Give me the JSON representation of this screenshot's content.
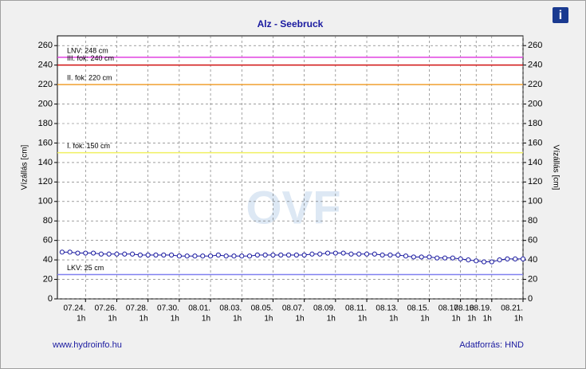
{
  "chart_data": {
    "type": "line",
    "title": "Alz - Seebruck",
    "y_label": "Vízállás [cm]",
    "y2_label": "Vízállás [cm]",
    "watermark": "OVF",
    "footer_left": "www.hydroinfo.hu",
    "footer_right": "Adatforrás: HND",
    "info_icon": "i",
    "xlim": [
      0.2,
      30
    ],
    "xticks": [
      {
        "value": 2,
        "label": "07.24."
      },
      {
        "value": 4,
        "label": "07.26."
      },
      {
        "value": 6,
        "label": "07.28."
      },
      {
        "value": 8,
        "label": "07.30."
      },
      {
        "value": 10,
        "label": "08.01."
      },
      {
        "value": 12,
        "label": "08.03."
      },
      {
        "value": 14,
        "label": "08.05."
      },
      {
        "value": 16,
        "label": "08.07."
      },
      {
        "value": 18,
        "label": "08.09."
      },
      {
        "value": 20,
        "label": "08.11."
      },
      {
        "value": 22,
        "label": "08.13."
      },
      {
        "value": 24,
        "label": "08.15."
      },
      {
        "value": 26,
        "label": "08.17."
      },
      {
        "value": 27,
        "label": "08.18."
      },
      {
        "value": 28,
        "label": "08.19."
      },
      {
        "value": 30,
        "label": "08.21."
      }
    ],
    "xtick_hours": [
      "1h",
      "1h",
      "1h",
      "1h",
      "1h",
      "1h",
      "1h",
      "1h",
      "1h",
      "1h",
      "1h",
      "1h",
      "1h",
      "1h",
      "1h",
      "1h"
    ],
    "ylim": [
      0,
      270
    ],
    "y2lim": [
      0,
      270
    ],
    "yticks": [
      0,
      20,
      40,
      60,
      80,
      100,
      120,
      140,
      160,
      180,
      200,
      220,
      240,
      260
    ],
    "y2ticks": [
      0,
      20,
      40,
      60,
      80,
      100,
      120,
      140,
      160,
      180,
      200,
      220,
      240,
      260
    ],
    "grid": true,
    "thresholds": [
      {
        "label": "LNV: 248 cm",
        "value": 248,
        "color": "#e040e0"
      },
      {
        "label": "III. fok: 240 cm",
        "value": 240,
        "color": "#d01010"
      },
      {
        "label": "II. fok: 220 cm",
        "value": 220,
        "color": "#f0a030"
      },
      {
        "label": "I. fok: 150 cm",
        "value": 150,
        "color": "#f0f060"
      },
      {
        "label": "LKV: 25 cm",
        "value": 25,
        "color": "#8080f0"
      }
    ],
    "x": [
      0.5,
      1,
      1.5,
      2,
      2.5,
      3,
      3.5,
      4,
      4.5,
      5,
      5.5,
      6,
      6.5,
      7,
      7.5,
      8,
      8.5,
      9,
      9.5,
      10,
      10.5,
      11,
      11.5,
      12,
      12.5,
      13,
      13.5,
      14,
      14.5,
      15,
      15.5,
      16,
      16.5,
      17,
      17.5,
      18,
      18.5,
      19,
      19.5,
      20,
      20.5,
      21,
      21.5,
      22,
      22.5,
      23,
      23.5,
      24,
      24.5,
      25,
      25.5,
      26,
      26.5,
      27,
      27.5,
      28,
      28.5,
      29,
      29.5,
      30
    ],
    "series": [
      {
        "color": "#1a1aa0",
        "values": [
          48,
          48,
          47,
          47,
          47,
          46,
          46,
          46,
          46,
          46,
          45,
          45,
          45,
          45,
          45,
          44,
          44,
          44,
          44,
          44,
          45,
          44,
          44,
          44,
          44,
          45,
          45,
          45,
          45,
          45,
          45,
          45,
          46,
          46,
          47,
          47,
          47,
          46,
          46,
          46,
          46,
          45,
          45,
          45,
          44,
          43,
          43,
          43,
          42,
          42,
          42,
          41,
          40,
          39,
          38,
          38,
          40,
          41,
          41,
          41
        ]
      }
    ]
  }
}
